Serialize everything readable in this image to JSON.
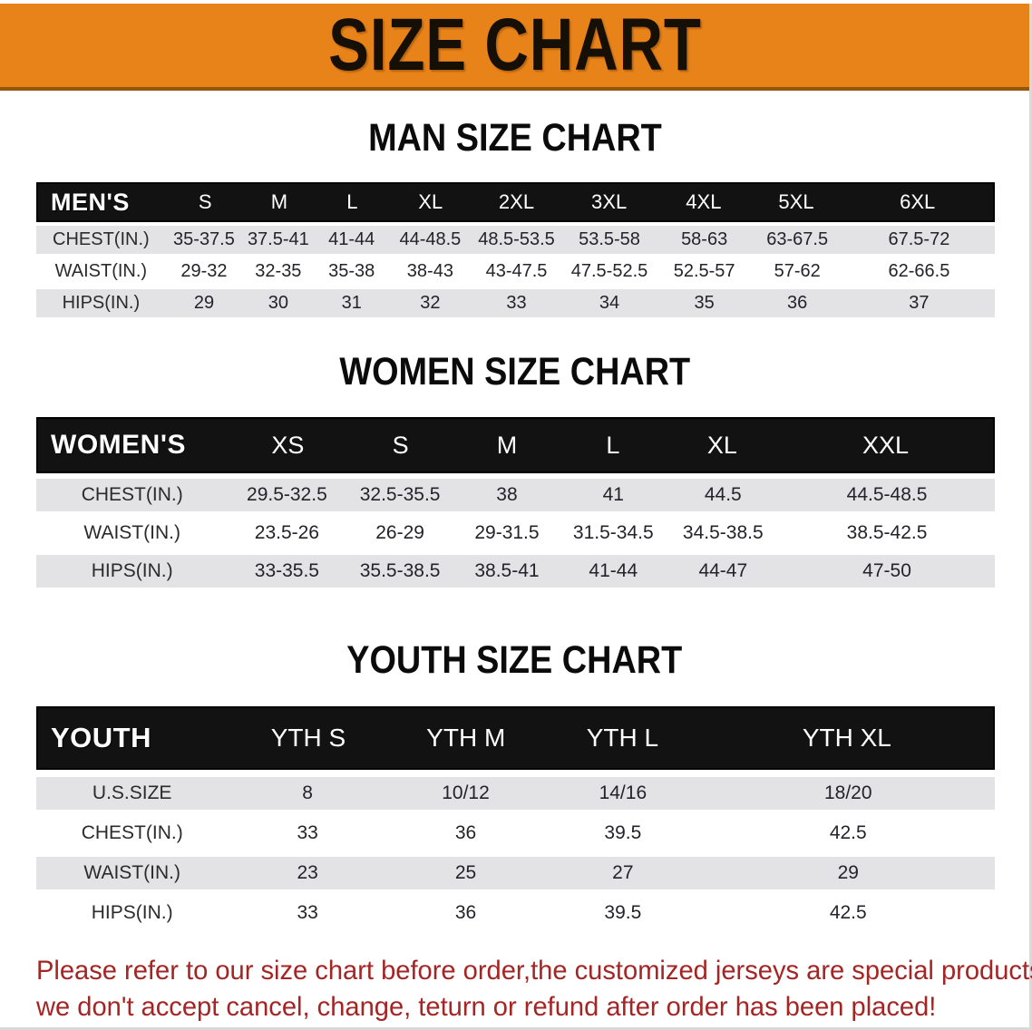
{
  "banner": {
    "title": "SIZE CHART",
    "bg_color": "#E8831A",
    "text_color": "#160F06"
  },
  "sections": [
    {
      "heading": "MAN SIZE CHART",
      "header_label": "MEN'S",
      "columns": [
        "S",
        "M",
        "L",
        "XL",
        "2XL",
        "3XL",
        "4XL",
        "5XL",
        "6XL"
      ],
      "rows": [
        {
          "label": "CHEST(IN.)",
          "values": [
            "35-37.5",
            "37.5-41",
            "41-44",
            "44-48.5",
            "48.5-53.5",
            "53.5-58",
            "58-63",
            "63-67.5",
            "67.5-72"
          ]
        },
        {
          "label": "WAIST(IN.)",
          "values": [
            "29-32",
            "32-35",
            "35-38",
            "38-43",
            "43-47.5",
            "47.5-52.5",
            "52.5-57",
            "57-62",
            "62-66.5"
          ]
        },
        {
          "label": "HIPS(IN.)",
          "values": [
            "29",
            "30",
            "31",
            "32",
            "33",
            "34",
            "35",
            "36",
            "37"
          ]
        }
      ]
    },
    {
      "heading": "WOMEN SIZE CHART",
      "header_label": "WOMEN'S",
      "columns": [
        "XS",
        "S",
        "M",
        "L",
        "XL",
        "XXL"
      ],
      "rows": [
        {
          "label": "CHEST(IN.)",
          "values": [
            "29.5-32.5",
            "32.5-35.5",
            "38",
            "41",
            "44.5",
            "44.5-48.5"
          ]
        },
        {
          "label": "WAIST(IN.)",
          "values": [
            "23.5-26",
            "26-29",
            "29-31.5",
            "31.5-34.5",
            "34.5-38.5",
            "38.5-42.5"
          ]
        },
        {
          "label": "HIPS(IN.)",
          "values": [
            "33-35.5",
            "35.5-38.5",
            "38.5-41",
            "41-44",
            "44-47",
            "47-50"
          ]
        }
      ]
    },
    {
      "heading": "YOUTH SIZE CHART",
      "header_label": "YOUTH",
      "columns": [
        "YTH S",
        "YTH M",
        "YTH L",
        "YTH XL"
      ],
      "rows": [
        {
          "label": "U.S.SIZE",
          "values": [
            "8",
            "10/12",
            "14/16",
            "18/20"
          ]
        },
        {
          "label": "CHEST(IN.)",
          "values": [
            "33",
            "36",
            "39.5",
            "42.5"
          ]
        },
        {
          "label": "WAIST(IN.)",
          "values": [
            "23",
            "25",
            "27",
            "29"
          ]
        },
        {
          "label": "HIPS(IN.)",
          "values": [
            "33",
            "36",
            "39.5",
            "42.5"
          ]
        }
      ]
    }
  ],
  "disclaimer": {
    "line1": "Please refer to our size chart before order,the customized jerseys are special products,",
    "line2": "we don't accept cancel, change, teturn or refund after order has been placed!",
    "color": "#A52525"
  },
  "colors": {
    "banner_orange": "#E8831A",
    "header_black": "#121212",
    "stripe_gray": "#E3E3E5",
    "disclaimer_red": "#A52525"
  }
}
